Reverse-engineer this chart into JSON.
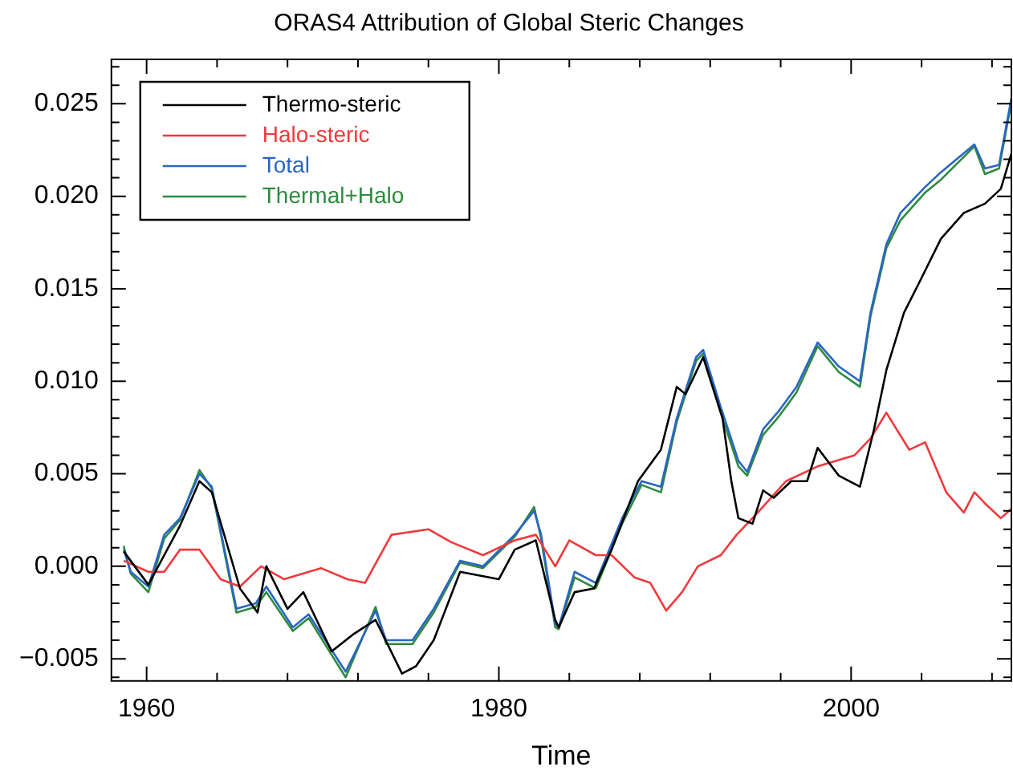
{
  "chart_data": {
    "type": "line",
    "title": "ORAS4 Attribution of Global Steric Changes",
    "xlabel": "Time",
    "xlim": [
      1958,
      2009.1
    ],
    "xticks": [
      1960,
      {
        "value": 1964,
        "label": null
      },
      {
        "value": 1968,
        "label": null
      },
      {
        "value": 1972,
        "label": null
      },
      {
        "value": 1976,
        "label": null
      },
      1980,
      {
        "value": 1984,
        "label": null
      },
      {
        "value": 1988,
        "label": null
      },
      {
        "value": 1992,
        "label": null
      },
      {
        "value": 1996,
        "label": null
      },
      2000,
      {
        "value": 2004,
        "label": null
      },
      {
        "value": 2008,
        "label": null
      }
    ],
    "ylim": [
      -0.0062,
      0.0274
    ],
    "yticks": [
      {
        "value": -0.006,
        "label": null
      },
      {
        "value": -0.005,
        "label": "−0.005"
      },
      {
        "value": -0.004,
        "label": null
      },
      {
        "value": -0.003,
        "label": null
      },
      {
        "value": -0.002,
        "label": null
      },
      {
        "value": -0.001,
        "label": null
      },
      {
        "value": 0,
        "label": "0.000"
      },
      {
        "value": 0.001,
        "label": null
      },
      {
        "value": 0.002,
        "label": null
      },
      {
        "value": 0.003,
        "label": null
      },
      {
        "value": 0.004,
        "label": null
      },
      {
        "value": 0.005,
        "label": "0.005"
      },
      {
        "value": 0.006,
        "label": null
      },
      {
        "value": 0.007,
        "label": null
      },
      {
        "value": 0.008,
        "label": null
      },
      {
        "value": 0.009,
        "label": null
      },
      {
        "value": 0.01,
        "label": "0.010"
      },
      {
        "value": 0.011,
        "label": null
      },
      {
        "value": 0.012,
        "label": null
      },
      {
        "value": 0.013,
        "label": null
      },
      {
        "value": 0.014,
        "label": null
      },
      {
        "value": 0.015,
        "label": "0.015"
      },
      {
        "value": 0.016,
        "label": null
      },
      {
        "value": 0.017,
        "label": null
      },
      {
        "value": 0.018,
        "label": null
      },
      {
        "value": 0.019,
        "label": null
      },
      {
        "value": 0.02,
        "label": "0.020"
      },
      {
        "value": 0.021,
        "label": null
      },
      {
        "value": 0.022,
        "label": null
      },
      {
        "value": 0.023,
        "label": null
      },
      {
        "value": 0.024,
        "label": null
      },
      {
        "value": 0.025,
        "label": "0.025"
      },
      {
        "value": 0.026,
        "label": null
      },
      {
        "value": 0.027,
        "label": null
      }
    ],
    "grid": false,
    "legend": "top left",
    "marker": "none",
    "line_style": "solid",
    "series": [
      {
        "name": "Thermo-steric",
        "color": "#000000",
        "x": [
          1958.7,
          1960.1,
          1961.9,
          1963.0,
          1963.7,
          1965.3,
          1966.3,
          1966.8,
          1968.0,
          1968.9,
          1970.5,
          1971.7,
          1973.0,
          1974.5,
          1975.3,
          1976.3,
          1977.8,
          1980.0,
          1980.9,
          1982.1,
          1983.2,
          1983.4,
          1984.3,
          1985.4,
          1986.4,
          1987.9,
          1989.2,
          1990.1,
          1990.6,
          1991.6,
          1992.7,
          1993.2,
          1993.6,
          1994.4,
          1995.0,
          1995.6,
          1996.6,
          1997.5,
          1998.1,
          1999.3,
          2000.5,
          2001.3,
          2002.0,
          2003.0,
          2003.9,
          2005.1,
          2006.4,
          2007.6,
          2008.5,
          2009.1
        ],
        "values": [
          0.0008,
          -0.001,
          0.0022,
          0.0046,
          0.004,
          -0.0012,
          -0.0025,
          0.0,
          -0.0023,
          -0.0014,
          -0.0046,
          -0.0037,
          -0.0029,
          -0.0058,
          -0.0054,
          -0.004,
          -0.0003,
          -0.0007,
          0.0009,
          0.0014,
          -0.0029,
          -0.0033,
          -0.0014,
          -0.0012,
          0.0009,
          0.0046,
          0.0063,
          0.0097,
          0.0093,
          0.0113,
          0.008,
          0.0046,
          0.0026,
          0.0023,
          0.0041,
          0.0037,
          0.0046,
          0.0046,
          0.0064,
          0.0049,
          0.0043,
          0.0074,
          0.0106,
          0.0137,
          0.0154,
          0.0177,
          0.0191,
          0.0196,
          0.0204,
          0.0223
        ]
      },
      {
        "name": "Halo-steric",
        "color": "#f0393c",
        "x": [
          1958.7,
          1960.1,
          1961.0,
          1961.9,
          1963.0,
          1964.2,
          1965.3,
          1966.5,
          1967.8,
          1969.9,
          1971.4,
          1972.4,
          1973.9,
          1976.0,
          1977.3,
          1979.1,
          1980.9,
          1982.1,
          1983.2,
          1984.0,
          1985.5,
          1986.4,
          1987.7,
          1988.6,
          1989.5,
          1990.4,
          1991.3,
          1992.6,
          1993.5,
          1994.7,
          1996.3,
          1998.1,
          2000.2,
          2001.1,
          2002.0,
          2003.3,
          2004.2,
          2005.4,
          2006.4,
          2007.0,
          2007.6,
          2008.5,
          2009.1
        ],
        "values": [
          0.0003,
          -0.0003,
          -0.0003,
          0.0009,
          0.0009,
          -0.0007,
          -0.0011,
          0.0,
          -0.0007,
          -0.0001,
          -0.0007,
          -0.0009,
          0.0017,
          0.002,
          0.0013,
          0.0006,
          0.0014,
          0.0017,
          0.0,
          0.0014,
          0.0006,
          0.0006,
          -0.0006,
          -0.0009,
          -0.0024,
          -0.0014,
          0.0,
          0.0006,
          0.0017,
          0.0029,
          0.0046,
          0.0054,
          0.006,
          0.0069,
          0.0083,
          0.0063,
          0.0067,
          0.004,
          0.0029,
          0.004,
          0.0034,
          0.0026,
          0.0031
        ]
      },
      {
        "name": "Total",
        "color": "#2a66c2",
        "x": [
          1958.7,
          1959.1,
          1960.1,
          1961.0,
          1961.9,
          1963.0,
          1963.7,
          1965.1,
          1966.2,
          1966.8,
          1968.3,
          1969.2,
          1971.3,
          1973.0,
          1973.6,
          1975.1,
          1976.3,
          1977.8,
          1979.1,
          1980.9,
          1982.0,
          1982.4,
          1983.2,
          1983.4,
          1984.3,
          1985.5,
          1987.0,
          1988.1,
          1989.2,
          1990.1,
          1991.2,
          1991.6,
          1992.6,
          1993.6,
          1994.1,
          1995.0,
          1995.9,
          1996.9,
          1998.1,
          1999.3,
          2000.5,
          2001.1,
          2002.0,
          2002.8,
          2004.2,
          2005.1,
          2007.0,
          2007.6,
          2008.4,
          2009.1
        ],
        "values": [
          0.0009,
          -0.0003,
          -0.0011,
          0.0017,
          0.0026,
          0.005,
          0.0043,
          -0.0023,
          -0.002,
          -0.0011,
          -0.0033,
          -0.0026,
          -0.0057,
          -0.0024,
          -0.004,
          -0.004,
          -0.0023,
          0.0003,
          0.0,
          0.0017,
          0.003,
          0.0017,
          -0.0031,
          -0.0033,
          -0.0003,
          -0.0009,
          0.0026,
          0.0046,
          0.0043,
          0.008,
          0.0113,
          0.0117,
          0.0086,
          0.0057,
          0.0051,
          0.0074,
          0.0084,
          0.0097,
          0.0121,
          0.0108,
          0.01,
          0.0137,
          0.0174,
          0.0191,
          0.0205,
          0.0213,
          0.0228,
          0.0215,
          0.0217,
          0.0253
        ]
      },
      {
        "name": "Thermal+Halo",
        "color": "#2e8b3e",
        "x": [
          1958.7,
          1959.1,
          1960.1,
          1961.0,
          1961.9,
          1963.0,
          1963.7,
          1965.1,
          1966.2,
          1966.8,
          1968.3,
          1969.2,
          1971.3,
          1973.0,
          1973.6,
          1975.1,
          1976.3,
          1977.8,
          1979.1,
          1980.9,
          1982.0,
          1982.4,
          1983.2,
          1983.4,
          1984.3,
          1985.5,
          1987.0,
          1988.1,
          1989.2,
          1990.1,
          1991.2,
          1991.6,
          1992.6,
          1993.6,
          1994.1,
          1995.0,
          1995.9,
          1996.9,
          1998.1,
          1999.3,
          2000.5,
          2001.1,
          2002.0,
          2002.8,
          2004.2,
          2005.1,
          2007.0,
          2007.6,
          2008.4,
          2009.1
        ],
        "values": [
          0.0011,
          -0.0004,
          -0.0014,
          0.0015,
          0.0025,
          0.0052,
          0.0042,
          -0.0025,
          -0.0022,
          -0.0014,
          -0.0035,
          -0.0028,
          -0.006,
          -0.0022,
          -0.0042,
          -0.0042,
          -0.0025,
          0.0002,
          -0.0001,
          0.0016,
          0.0032,
          0.0015,
          -0.0033,
          -0.0034,
          -0.0006,
          -0.0012,
          0.0023,
          0.0044,
          0.004,
          0.0078,
          0.0111,
          0.0115,
          0.0083,
          0.0054,
          0.0049,
          0.0071,
          0.0081,
          0.0094,
          0.0119,
          0.0105,
          0.0097,
          0.0135,
          0.0172,
          0.0187,
          0.0202,
          0.0209,
          0.0227,
          0.0212,
          0.0215,
          0.0251
        ]
      }
    ]
  }
}
